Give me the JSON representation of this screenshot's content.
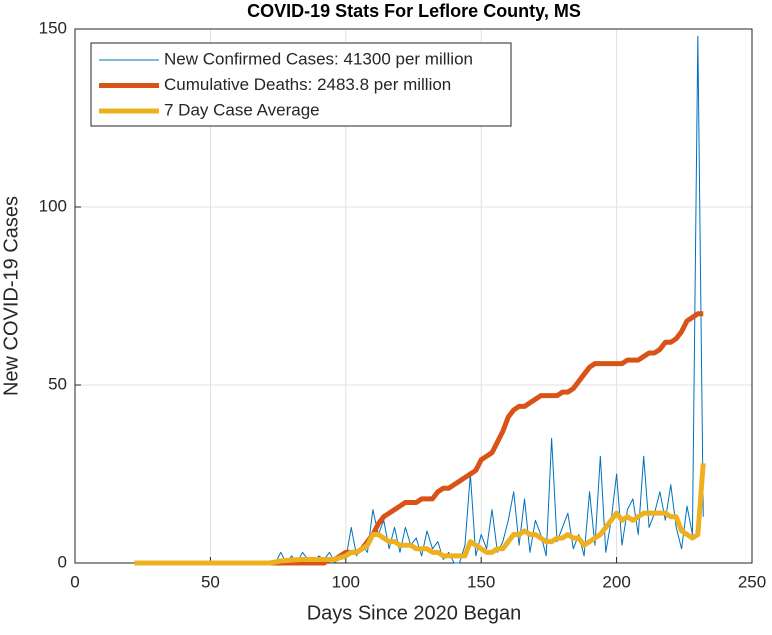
{
  "chart_data": {
    "type": "line",
    "title": "COVID-19 Stats For Leflore County, MS",
    "xlabel": "Days Since 2020 Began",
    "ylabel": "New COVID-19 Cases",
    "xlim": [
      0,
      250
    ],
    "ylim": [
      0,
      150
    ],
    "xticks": [
      0,
      50,
      100,
      150,
      200,
      250
    ],
    "yticks": [
      0,
      50,
      100,
      150
    ],
    "grid": true,
    "legend": "upper left",
    "x": [
      22,
      24,
      26,
      28,
      30,
      32,
      34,
      36,
      38,
      40,
      42,
      44,
      46,
      48,
      50,
      52,
      54,
      56,
      58,
      60,
      62,
      64,
      66,
      68,
      70,
      72,
      74,
      76,
      78,
      80,
      82,
      84,
      86,
      88,
      90,
      92,
      94,
      96,
      98,
      100,
      102,
      104,
      106,
      108,
      110,
      112,
      114,
      116,
      118,
      120,
      122,
      124,
      126,
      128,
      130,
      132,
      134,
      136,
      138,
      140,
      142,
      144,
      146,
      148,
      150,
      152,
      154,
      156,
      158,
      160,
      162,
      164,
      166,
      168,
      170,
      172,
      174,
      176,
      178,
      180,
      182,
      184,
      186,
      188,
      190,
      192,
      194,
      196,
      198,
      200,
      202,
      204,
      206,
      208,
      210,
      212,
      214,
      216,
      218,
      220,
      222,
      224,
      226,
      228,
      230,
      232
    ],
    "series": [
      {
        "name": "New Confirmed Cases: 41300 per million",
        "color": "#0072BD",
        "width": 1,
        "values": [
          0,
          0,
          0,
          0,
          0,
          0,
          0,
          0,
          0,
          0,
          0,
          0,
          0,
          0,
          0,
          0,
          0,
          0,
          0,
          0,
          0,
          0,
          0,
          0,
          0,
          0,
          0,
          3,
          0,
          2,
          0,
          3,
          1,
          0,
          2,
          1,
          3,
          0,
          2,
          1,
          10,
          2,
          5,
          3,
          15,
          8,
          12,
          4,
          10,
          3,
          10,
          5,
          7,
          2,
          9,
          4,
          6,
          1,
          3,
          0,
          0,
          5,
          25,
          2,
          8,
          4,
          15,
          3,
          6,
          12,
          20,
          5,
          18,
          3,
          12,
          8,
          2,
          35,
          6,
          10,
          14,
          4,
          8,
          2,
          20,
          5,
          30,
          3,
          12,
          25,
          5,
          15,
          18,
          8,
          30,
          10,
          14,
          20,
          12,
          22,
          10,
          4,
          16,
          8,
          148,
          13
        ]
      },
      {
        "name": "Cumulative Deaths: 2483.8 per million",
        "color": "#D95319",
        "width": 5,
        "values": [
          0,
          0,
          0,
          0,
          0,
          0,
          0,
          0,
          0,
          0,
          0,
          0,
          0,
          0,
          0,
          0,
          0,
          0,
          0,
          0,
          0,
          0,
          0,
          0,
          0,
          0,
          0,
          0,
          0,
          0,
          0,
          0,
          0,
          0,
          0,
          0,
          1,
          1,
          2,
          3,
          3,
          3,
          4,
          6,
          8,
          11,
          13,
          14,
          15,
          16,
          17,
          17,
          17,
          18,
          18,
          18,
          20,
          21,
          21,
          22,
          23,
          24,
          25,
          26,
          29,
          30,
          31,
          34,
          37,
          41,
          43,
          44,
          44,
          45,
          46,
          47,
          47,
          47,
          47,
          48,
          48,
          49,
          51,
          53,
          55,
          56,
          56,
          56,
          56,
          56,
          56,
          57,
          57,
          57,
          58,
          59,
          59,
          60,
          62,
          62,
          63,
          65,
          68,
          69,
          70,
          70
        ]
      },
      {
        "name": "7 Day Case Average",
        "color": "#EDB120",
        "width": 5,
        "values": [
          0,
          0,
          0,
          0,
          0,
          0,
          0,
          0,
          0,
          0,
          0,
          0,
          0,
          0,
          0,
          0,
          0,
          0,
          0,
          0,
          0,
          0,
          0,
          0,
          0,
          0,
          0.3,
          0.6,
          0.7,
          0.8,
          0.9,
          1,
          1,
          1,
          1,
          1,
          1,
          1,
          1.5,
          2,
          3,
          3,
          4,
          5,
          8,
          8,
          7,
          6,
          6,
          5,
          5,
          5,
          4,
          4,
          4,
          3,
          3,
          2,
          2,
          2,
          2,
          2,
          6,
          5,
          4,
          3,
          3,
          4,
          4,
          6,
          8,
          8,
          9,
          8,
          8,
          7,
          6,
          6,
          7,
          7,
          8,
          7,
          7,
          5,
          6,
          7,
          8,
          10,
          12,
          14,
          12,
          13,
          12,
          13,
          14,
          14,
          14,
          14,
          14,
          13,
          13,
          9,
          8,
          7,
          8,
          28
        ]
      }
    ]
  }
}
